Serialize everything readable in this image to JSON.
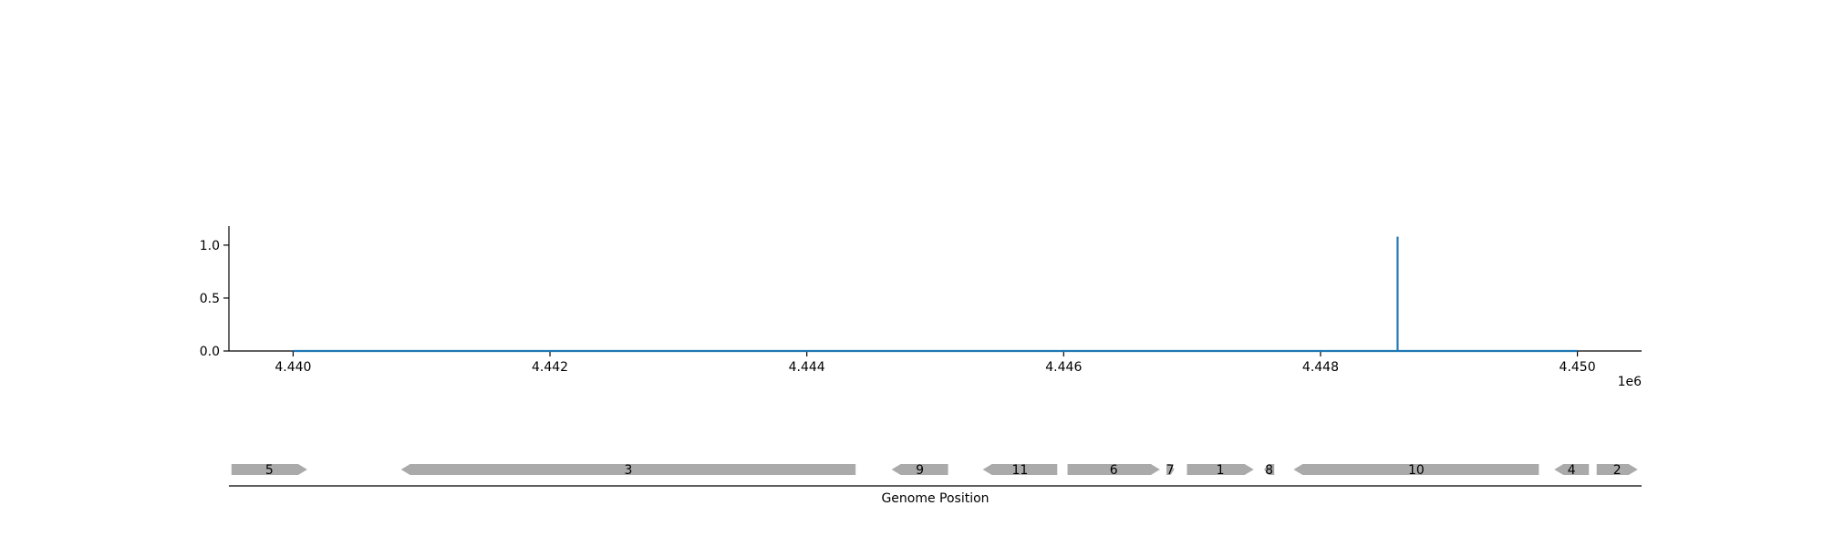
{
  "chart_data": [
    {
      "type": "line",
      "title": "",
      "xlabel": "",
      "ylabel": "",
      "x_offset_label": "1e6",
      "xlim": [
        4439500,
        4450500
      ],
      "ylim": [
        0,
        1.18
      ],
      "x_ticks": [
        4440000,
        4442000,
        4444000,
        4446000,
        4448000,
        4450000
      ],
      "x_tick_labels": [
        "4.440",
        "4.442",
        "4.444",
        "4.446",
        "4.448",
        "4.450"
      ],
      "y_ticks": [
        0.0,
        0.5,
        1.0
      ],
      "y_tick_labels": [
        "0.0",
        "0.5",
        "1.0"
      ],
      "grid": false,
      "color": "#1f77b4",
      "series": [
        {
          "x": [
            4440000,
            4448600,
            4448600,
            4448600,
            4450000
          ],
          "y": [
            0.0,
            0.0,
            1.08,
            0.0,
            0.0
          ]
        }
      ]
    },
    {
      "type": "gene_map",
      "xlabel": "Genome Position",
      "xlim": [
        4439500,
        4450500
      ],
      "color": "#aaaaaa",
      "genes": [
        {
          "label": "5",
          "start": 4439520,
          "end": 4440110,
          "strand": "+"
        },
        {
          "label": "3",
          "start": 4440840,
          "end": 4444380,
          "strand": "-"
        },
        {
          "label": "9",
          "start": 4444660,
          "end": 4445100,
          "strand": "-"
        },
        {
          "label": "11",
          "start": 4445370,
          "end": 4445950,
          "strand": "-"
        },
        {
          "label": "6",
          "start": 4446030,
          "end": 4446750,
          "strand": "+"
        },
        {
          "label": "7",
          "start": 4446800,
          "end": 4446860,
          "strand": "+"
        },
        {
          "label": "1",
          "start": 4446960,
          "end": 4447480,
          "strand": "+"
        },
        {
          "label": "8",
          "start": 4447560,
          "end": 4447640,
          "strand": "-"
        },
        {
          "label": "10",
          "start": 4447790,
          "end": 4449700,
          "strand": "-"
        },
        {
          "label": "4",
          "start": 4449820,
          "end": 4450090,
          "strand": "-"
        },
        {
          "label": "2",
          "start": 4450150,
          "end": 4450470,
          "strand": "+"
        }
      ]
    }
  ]
}
